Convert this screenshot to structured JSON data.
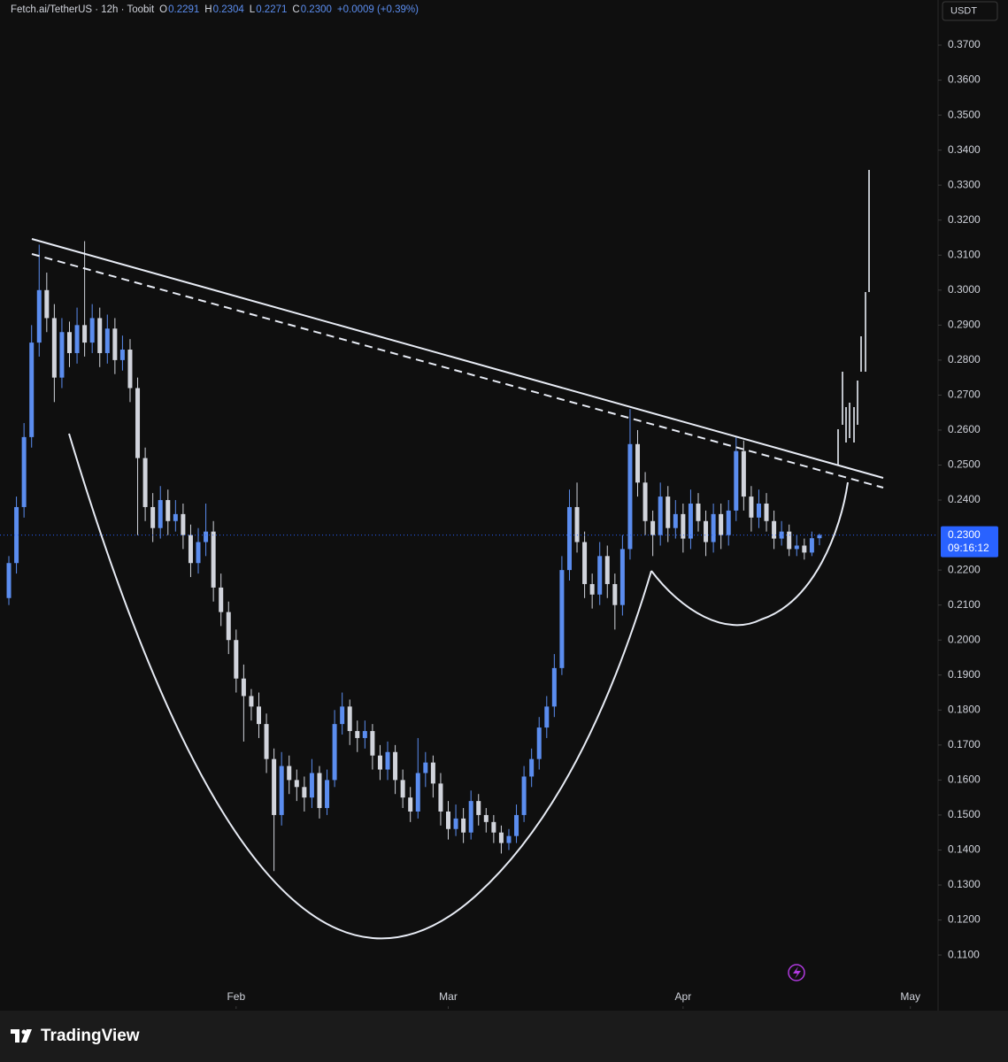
{
  "chart_data": {
    "type": "candlestick",
    "title": "Fetch.ai/TetherUS · 12h · Toobit",
    "legend_values": [
      {
        "label": "O",
        "value": "0.2291"
      },
      {
        "label": "H",
        "value": "0.2304"
      },
      {
        "label": "L",
        "value": "0.2271"
      },
      {
        "label": "C",
        "value": "0.2300"
      }
    ],
    "change": "+0.0009 (+0.39%)",
    "currency": "USDT",
    "last_price": {
      "value": 0.23,
      "label": "0.2300"
    },
    "countdown": "09:16:12",
    "brand": "TradingView",
    "up_color": "#5b8def",
    "down_color": "#d1d4dc",
    "xlim": [
      -1.17,
      122.66
    ],
    "xticks": [
      {
        "value": 30,
        "label": "Feb"
      },
      {
        "value": 58,
        "label": "Mar"
      },
      {
        "value": 89,
        "label": "Apr"
      },
      {
        "value": 119,
        "label": "May"
      }
    ],
    "ylim": [
      0.0946,
      0.3829
    ],
    "yticks": [
      {
        "value": 0.11,
        "label": "0.1100"
      },
      {
        "value": 0.12,
        "label": "0.1200"
      },
      {
        "value": 0.13,
        "label": "0.1300"
      },
      {
        "value": 0.14,
        "label": "0.1400"
      },
      {
        "value": 0.15,
        "label": "0.1500"
      },
      {
        "value": 0.16,
        "label": "0.1600"
      },
      {
        "value": 0.17,
        "label": "0.1700"
      },
      {
        "value": 0.18,
        "label": "0.1800"
      },
      {
        "value": 0.19,
        "label": "0.1900"
      },
      {
        "value": 0.2,
        "label": "0.2000"
      },
      {
        "value": 0.21,
        "label": "0.2100"
      },
      {
        "value": 0.22,
        "label": "0.2200"
      },
      {
        "value": 0.24,
        "label": "0.2400"
      },
      {
        "value": 0.25,
        "label": "0.2500"
      },
      {
        "value": 0.26,
        "label": "0.2600"
      },
      {
        "value": 0.27,
        "label": "0.2700"
      },
      {
        "value": 0.28,
        "label": "0.2800"
      },
      {
        "value": 0.29,
        "label": "0.2900"
      },
      {
        "value": 0.3,
        "label": "0.3000"
      },
      {
        "value": 0.31,
        "label": "0.3100"
      },
      {
        "value": 0.32,
        "label": "0.3200"
      },
      {
        "value": 0.33,
        "label": "0.3300"
      },
      {
        "value": 0.34,
        "label": "0.3400"
      },
      {
        "value": 0.35,
        "label": "0.3500"
      },
      {
        "value": 0.36,
        "label": "0.3600"
      },
      {
        "value": 0.37,
        "label": "0.3700"
      }
    ],
    "x": [
      0,
      1,
      2,
      3,
      4,
      5,
      6,
      7,
      8,
      9,
      10,
      11,
      12,
      13,
      14,
      15,
      16,
      17,
      18,
      19,
      20,
      21,
      22,
      23,
      24,
      25,
      26,
      27,
      28,
      29,
      30,
      31,
      32,
      33,
      34,
      35,
      36,
      37,
      38,
      39,
      40,
      41,
      42,
      43,
      44,
      45,
      46,
      47,
      48,
      49,
      50,
      51,
      52,
      53,
      54,
      55,
      56,
      57,
      58,
      59,
      60,
      61,
      62,
      63,
      64,
      65,
      66,
      67,
      68,
      69,
      70,
      71,
      72,
      73,
      74,
      75,
      76,
      77,
      78,
      79,
      80,
      81,
      82,
      83,
      84,
      85,
      86,
      87,
      88,
      89,
      90,
      91,
      92,
      93,
      94,
      95,
      96,
      97,
      98,
      99,
      100,
      101,
      102,
      103,
      104,
      105,
      106,
      107
    ],
    "candles": [
      [
        0.212,
        0.224,
        0.21,
        0.222
      ],
      [
        0.222,
        0.241,
        0.219,
        0.238
      ],
      [
        0.238,
        0.262,
        0.235,
        0.258
      ],
      [
        0.258,
        0.29,
        0.255,
        0.285
      ],
      [
        0.285,
        0.313,
        0.281,
        0.3
      ],
      [
        0.3,
        0.305,
        0.288,
        0.292
      ],
      [
        0.292,
        0.296,
        0.268,
        0.275
      ],
      [
        0.275,
        0.292,
        0.272,
        0.288
      ],
      [
        0.288,
        0.291,
        0.278,
        0.282
      ],
      [
        0.282,
        0.295,
        0.279,
        0.29
      ],
      [
        0.29,
        0.314,
        0.281,
        0.285
      ],
      [
        0.285,
        0.296,
        0.282,
        0.292
      ],
      [
        0.292,
        0.295,
        0.278,
        0.282
      ],
      [
        0.282,
        0.293,
        0.279,
        0.289
      ],
      [
        0.289,
        0.292,
        0.276,
        0.28
      ],
      [
        0.28,
        0.287,
        0.277,
        0.283
      ],
      [
        0.283,
        0.286,
        0.268,
        0.272
      ],
      [
        0.272,
        0.275,
        0.23,
        0.252
      ],
      [
        0.252,
        0.255,
        0.234,
        0.238
      ],
      [
        0.238,
        0.242,
        0.228,
        0.232
      ],
      [
        0.232,
        0.244,
        0.229,
        0.24
      ],
      [
        0.24,
        0.243,
        0.23,
        0.234
      ],
      [
        0.234,
        0.24,
        0.231,
        0.236
      ],
      [
        0.236,
        0.239,
        0.226,
        0.23
      ],
      [
        0.23,
        0.233,
        0.218,
        0.222
      ],
      [
        0.222,
        0.232,
        0.219,
        0.228
      ],
      [
        0.228,
        0.239,
        0.224,
        0.231
      ],
      [
        0.231,
        0.234,
        0.211,
        0.215
      ],
      [
        0.215,
        0.219,
        0.204,
        0.208
      ],
      [
        0.208,
        0.211,
        0.196,
        0.2
      ],
      [
        0.2,
        0.203,
        0.185,
        0.189
      ],
      [
        0.189,
        0.193,
        0.171,
        0.184
      ],
      [
        0.184,
        0.186,
        0.177,
        0.181
      ],
      [
        0.181,
        0.185,
        0.172,
        0.176
      ],
      [
        0.176,
        0.179,
        0.162,
        0.166
      ],
      [
        0.166,
        0.169,
        0.134,
        0.15
      ],
      [
        0.15,
        0.168,
        0.147,
        0.164
      ],
      [
        0.164,
        0.167,
        0.156,
        0.16
      ],
      [
        0.16,
        0.163,
        0.154,
        0.158
      ],
      [
        0.158,
        0.161,
        0.151,
        0.155
      ],
      [
        0.155,
        0.166,
        0.152,
        0.162
      ],
      [
        0.162,
        0.164,
        0.149,
        0.152
      ],
      [
        0.152,
        0.163,
        0.15,
        0.16
      ],
      [
        0.16,
        0.18,
        0.158,
        0.176
      ],
      [
        0.176,
        0.185,
        0.173,
        0.181
      ],
      [
        0.181,
        0.183,
        0.17,
        0.174
      ],
      [
        0.174,
        0.177,
        0.168,
        0.172
      ],
      [
        0.172,
        0.177,
        0.169,
        0.174
      ],
      [
        0.174,
        0.176,
        0.163,
        0.167
      ],
      [
        0.167,
        0.17,
        0.16,
        0.163
      ],
      [
        0.163,
        0.171,
        0.16,
        0.168
      ],
      [
        0.168,
        0.17,
        0.156,
        0.16
      ],
      [
        0.16,
        0.163,
        0.152,
        0.155
      ],
      [
        0.155,
        0.158,
        0.148,
        0.151
      ],
      [
        0.151,
        0.172,
        0.149,
        0.162
      ],
      [
        0.162,
        0.168,
        0.158,
        0.165
      ],
      [
        0.165,
        0.167,
        0.155,
        0.159
      ],
      [
        0.159,
        0.162,
        0.147,
        0.151
      ],
      [
        0.151,
        0.154,
        0.143,
        0.146
      ],
      [
        0.146,
        0.153,
        0.144,
        0.149
      ],
      [
        0.149,
        0.152,
        0.142,
        0.145
      ],
      [
        0.145,
        0.157,
        0.143,
        0.154
      ],
      [
        0.154,
        0.156,
        0.147,
        0.15
      ],
      [
        0.15,
        0.152,
        0.145,
        0.148
      ],
      [
        0.148,
        0.15,
        0.142,
        0.145
      ],
      [
        0.145,
        0.147,
        0.139,
        0.142
      ],
      [
        0.142,
        0.146,
        0.14,
        0.144
      ],
      [
        0.144,
        0.153,
        0.142,
        0.15
      ],
      [
        0.15,
        0.164,
        0.148,
        0.161
      ],
      [
        0.161,
        0.169,
        0.158,
        0.166
      ],
      [
        0.166,
        0.178,
        0.163,
        0.175
      ],
      [
        0.175,
        0.184,
        0.172,
        0.181
      ],
      [
        0.181,
        0.196,
        0.178,
        0.192
      ],
      [
        0.192,
        0.224,
        0.19,
        0.22
      ],
      [
        0.22,
        0.243,
        0.217,
        0.238
      ],
      [
        0.238,
        0.245,
        0.225,
        0.228
      ],
      [
        0.228,
        0.231,
        0.212,
        0.216
      ],
      [
        0.216,
        0.219,
        0.209,
        0.213
      ],
      [
        0.213,
        0.228,
        0.21,
        0.224
      ],
      [
        0.224,
        0.227,
        0.212,
        0.216
      ],
      [
        0.216,
        0.219,
        0.203,
        0.21
      ],
      [
        0.21,
        0.23,
        0.207,
        0.226
      ],
      [
        0.226,
        0.266,
        0.223,
        0.256
      ],
      [
        0.256,
        0.26,
        0.241,
        0.245
      ],
      [
        0.245,
        0.248,
        0.23,
        0.234
      ],
      [
        0.234,
        0.237,
        0.224,
        0.23
      ],
      [
        0.23,
        0.245,
        0.227,
        0.241
      ],
      [
        0.241,
        0.244,
        0.228,
        0.232
      ],
      [
        0.232,
        0.24,
        0.229,
        0.236
      ],
      [
        0.236,
        0.239,
        0.225,
        0.229
      ],
      [
        0.229,
        0.243,
        0.226,
        0.239
      ],
      [
        0.239,
        0.242,
        0.231,
        0.234
      ],
      [
        0.234,
        0.237,
        0.224,
        0.228
      ],
      [
        0.228,
        0.239,
        0.225,
        0.236
      ],
      [
        0.236,
        0.239,
        0.226,
        0.23
      ],
      [
        0.23,
        0.24,
        0.227,
        0.237
      ],
      [
        0.237,
        0.258,
        0.234,
        0.254
      ],
      [
        0.254,
        0.257,
        0.237,
        0.241
      ],
      [
        0.241,
        0.244,
        0.231,
        0.235
      ],
      [
        0.235,
        0.243,
        0.232,
        0.239
      ],
      [
        0.239,
        0.242,
        0.231,
        0.234
      ],
      [
        0.234,
        0.237,
        0.226,
        0.229
      ],
      [
        0.229,
        0.234,
        0.227,
        0.231
      ],
      [
        0.231,
        0.233,
        0.224,
        0.226
      ],
      [
        0.226,
        0.23,
        0.224,
        0.227
      ],
      [
        0.227,
        0.229,
        0.223,
        0.225
      ],
      [
        0.225,
        0.231,
        0.224,
        0.2291
      ],
      [
        0.2291,
        0.2304,
        0.2271,
        0.23
      ]
    ]
  }
}
